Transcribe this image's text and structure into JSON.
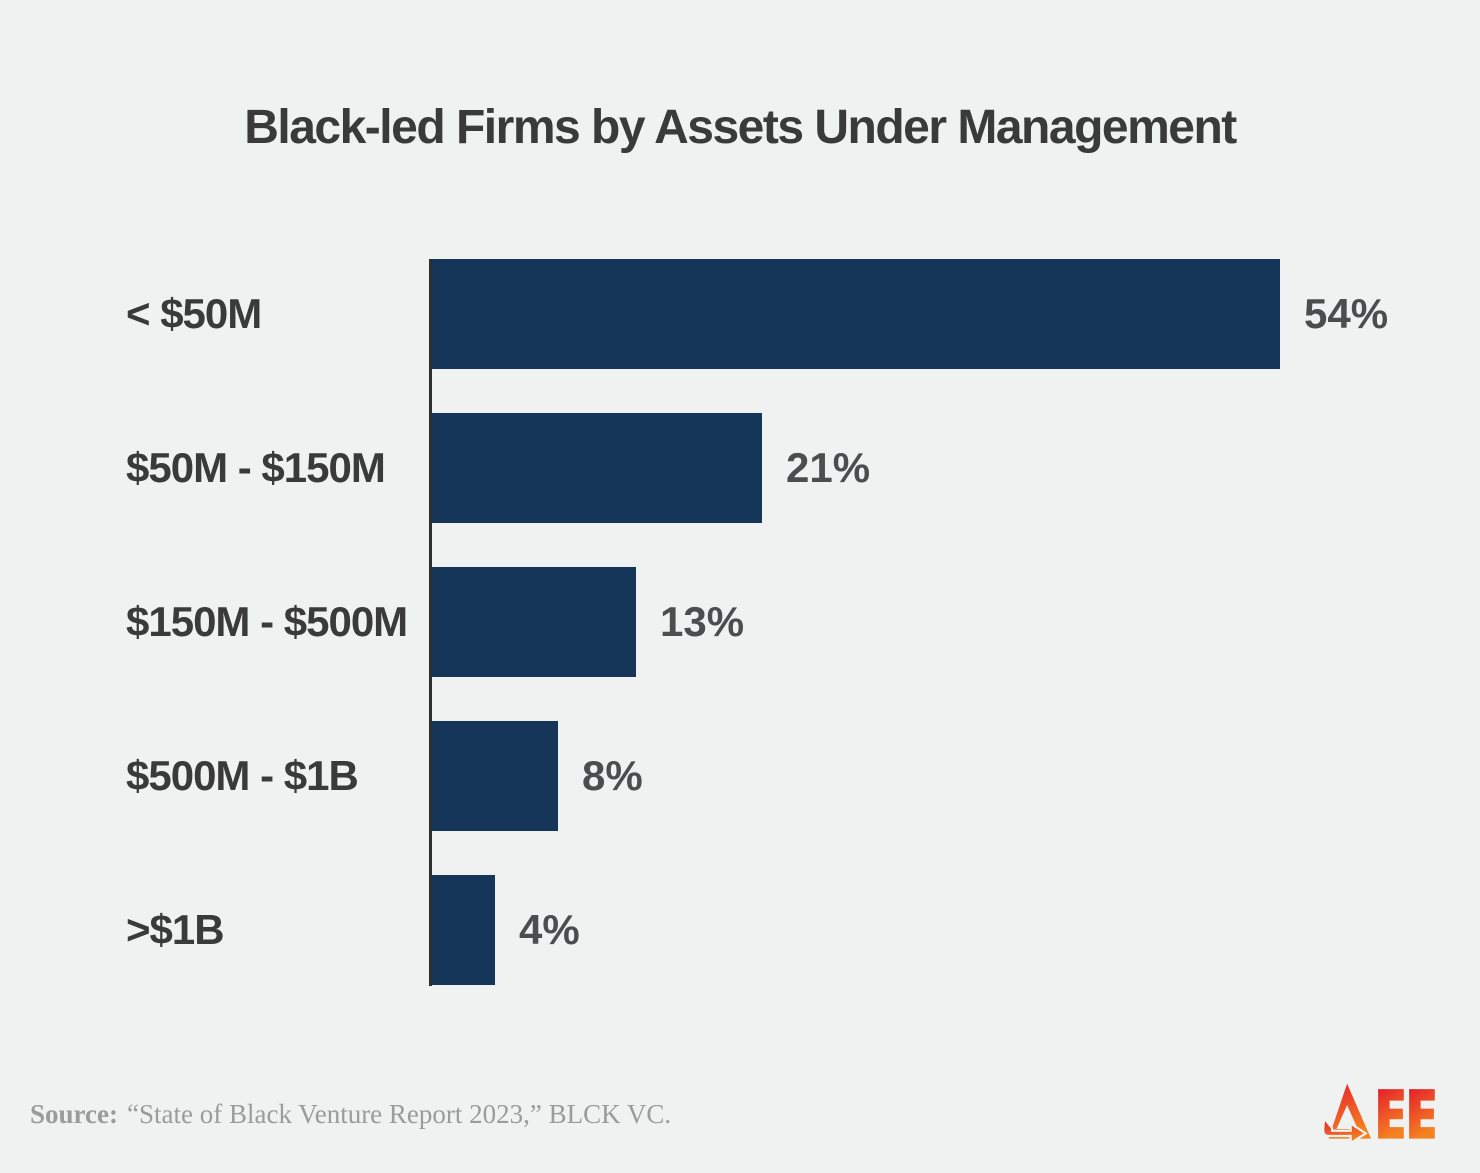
{
  "title": "Black-led Firms by Assets Under Management",
  "chart_data": {
    "type": "bar",
    "orientation": "horizontal",
    "title": "Black-led Firms by Assets Under Management",
    "categories": [
      "< $50M",
      "$50M - $150M",
      "$150M - $500M",
      "$500M - $1B",
      ">$1B"
    ],
    "values": [
      54,
      21,
      13,
      8,
      4
    ],
    "value_labels": [
      "54%",
      "21%",
      "13%",
      "8%",
      "4%"
    ],
    "unit": "%",
    "xlim": [
      0,
      56
    ],
    "grid": false,
    "legend": false,
    "bar_color": "#163659"
  },
  "source": {
    "prefix": "Source:",
    "text": "“State of Black Venture Report 2023,” BLCK VC."
  },
  "logo": {
    "name": "AEE",
    "color_top": "#e41f2d",
    "color_bottom": "#f58220"
  },
  "colors": {
    "background": "#f0f1f1",
    "bar": "#163659",
    "title_text": "#3a3a3a",
    "category_text": "#3a3a3a",
    "percent_text": "#4d4d4f",
    "axis_line": "#2e2e2e",
    "source_text": "#9b9b9b"
  }
}
